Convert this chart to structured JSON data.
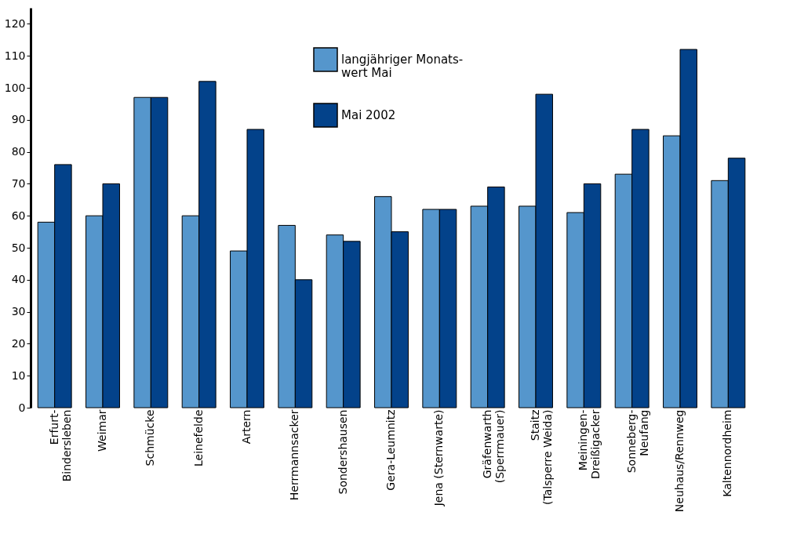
{
  "chart_data": {
    "type": "bar",
    "categories": [
      "Erfurt-\nBindersleben",
      "Weimar",
      "Schmücke",
      "Leinefelde",
      "Artern",
      "Herrmannsacker",
      "Sondershausen",
      "Gera-Leumnitz",
      "Jena (Sternwarte)",
      "Gräfenwarth\n(Sperrmauer)",
      "Staitz\n(Talsperre Weida)",
      "Meiningen-\nDreißigacker",
      "Sonneberg-\nNeufang",
      "Neuhaus/Rennweg",
      "Kaltennordheim"
    ],
    "series": [
      {
        "name": "langjähriger Monats-\nwert Mai",
        "color": "#5596cc",
        "values": [
          58,
          60,
          97,
          60,
          49,
          57,
          54,
          66,
          62,
          63,
          63,
          61,
          73,
          85,
          71
        ]
      },
      {
        "name": "Mai 2002",
        "color": "#03428a",
        "values": [
          76,
          70,
          97,
          102,
          87,
          40,
          52,
          55,
          62,
          69,
          98,
          70,
          87,
          112,
          78
        ]
      }
    ],
    "ylim": [
      0,
      125
    ],
    "yticks": [
      0,
      10,
      20,
      30,
      40,
      50,
      60,
      70,
      80,
      90,
      100,
      110,
      120
    ],
    "grid": false,
    "legend": "top"
  }
}
